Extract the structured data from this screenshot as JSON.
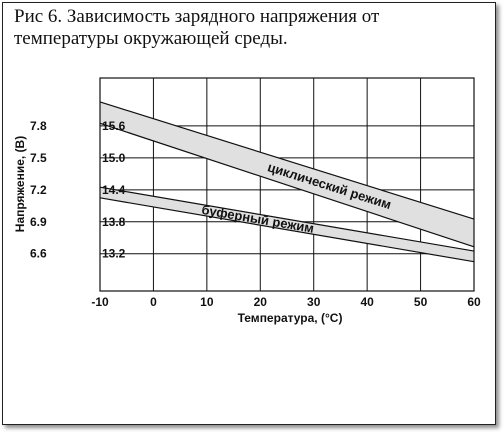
{
  "caption": "Рис 6. Зависимость зарядного напряжения от температуры окружающей среды.",
  "chart_data": {
    "type": "area",
    "xlabel": "Температура, (°C)",
    "ylabel": "Напряжение,  (В)",
    "xlim": [
      -10,
      60
    ],
    "ylim": [
      12.5,
      16.5
    ],
    "x_ticks": [
      "-10",
      "0",
      "10",
      "20",
      "30",
      "40",
      "50",
      "60"
    ],
    "x_tick_values": [
      -10,
      0,
      10,
      20,
      30,
      40,
      50,
      60
    ],
    "y_ticks_right": [
      "13.2",
      "13.8",
      "14.4",
      "15.0",
      "15.6"
    ],
    "y_tick_values": [
      13.2,
      13.8,
      14.4,
      15.0,
      15.6
    ],
    "y_ticks_left": [
      "6.6",
      "6.9",
      "7.2",
      "7.5",
      "7.8"
    ],
    "grid": true,
    "band_fill": "#e0e0e0",
    "series": [
      {
        "name": "циклический режим",
        "x": [
          -10,
          60
        ],
        "upper": [
          16.05,
          13.85
        ],
        "lower": [
          15.65,
          13.33
        ]
      },
      {
        "name": "буферный режим",
        "x": [
          -10,
          60
        ],
        "upper": [
          14.45,
          13.25
        ],
        "lower": [
          14.25,
          13.05
        ]
      }
    ]
  }
}
